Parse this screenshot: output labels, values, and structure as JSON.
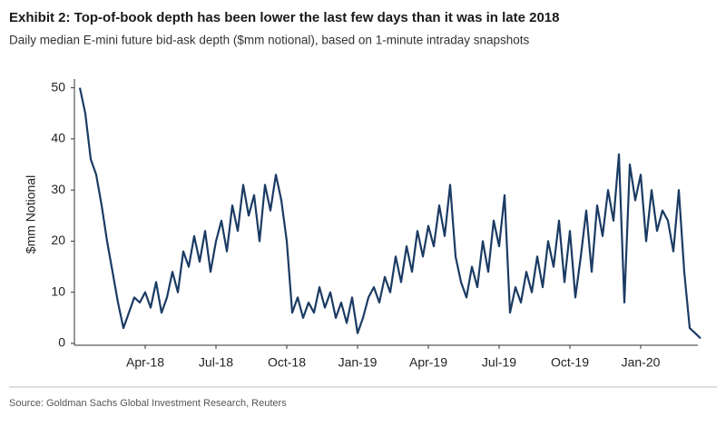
{
  "chart_data": {
    "type": "line",
    "title": "Exhibit 2: Top-of-book depth has been lower the last few days than it was in late 2018",
    "subtitle": "Daily median E-mini future bid-ask depth ($mm notional), based on 1-minute intraday snapshots",
    "y_label": "$mm Notional",
    "source": "Source: Goldman Sachs Global Investment Research, Reuters",
    "color": "#1b3b63",
    "grid": false,
    "ylim": [
      0,
      51
    ],
    "yticks": [
      0,
      10,
      20,
      30,
      40,
      50
    ],
    "categories": [
      null,
      null,
      null,
      null,
      null,
      null,
      null,
      null,
      null,
      null,
      null,
      null,
      "Apr-18",
      null,
      null,
      null,
      null,
      null,
      null,
      null,
      null,
      null,
      null,
      null,
      null,
      "Jul-18",
      null,
      null,
      null,
      null,
      null,
      null,
      null,
      null,
      null,
      null,
      null,
      null,
      "Oct-18",
      null,
      null,
      null,
      null,
      null,
      null,
      null,
      null,
      null,
      null,
      null,
      null,
      "Jan-19",
      null,
      null,
      null,
      null,
      null,
      null,
      null,
      null,
      null,
      null,
      null,
      null,
      "Apr-19",
      null,
      null,
      null,
      null,
      null,
      null,
      null,
      null,
      null,
      null,
      null,
      null,
      "Jul-19",
      null,
      null,
      null,
      null,
      null,
      null,
      null,
      null,
      null,
      null,
      null,
      null,
      "Oct-19",
      null,
      null,
      null,
      null,
      null,
      null,
      null,
      null,
      null,
      null,
      null,
      null,
      "Jan-20",
      null,
      null,
      null,
      null,
      null,
      null,
      null,
      null,
      null,
      null,
      null
    ],
    "values": [
      50,
      45,
      36,
      33,
      27,
      20,
      14,
      8,
      3,
      6,
      9,
      8,
      10,
      7,
      12,
      6,
      9,
      14,
      10,
      18,
      15,
      21,
      16,
      22,
      14,
      20,
      24,
      18,
      27,
      22,
      31,
      25,
      29,
      20,
      31,
      26,
      33,
      28,
      20,
      6,
      9,
      5,
      8,
      6,
      11,
      7,
      10,
      5,
      8,
      4,
      9,
      2,
      5,
      9,
      11,
      8,
      13,
      10,
      17,
      12,
      19,
      14,
      22,
      17,
      23,
      19,
      27,
      21,
      31,
      17,
      12,
      9,
      15,
      11,
      20,
      14,
      24,
      19,
      29,
      6,
      11,
      8,
      14,
      10,
      17,
      11,
      20,
      15,
      24,
      12,
      22,
      9,
      17,
      26,
      14,
      27,
      21,
      30,
      24,
      37,
      8,
      35,
      28,
      33,
      20,
      30,
      22,
      26,
      24,
      18,
      30,
      14,
      3,
      2,
      1
    ]
  }
}
